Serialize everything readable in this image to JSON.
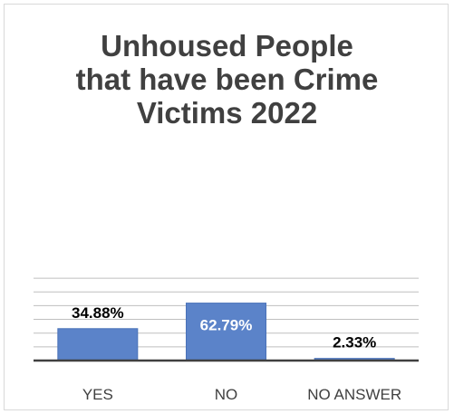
{
  "chart_data": {
    "type": "bar",
    "title": "Unhoused People\nthat have been Crime\nVictims 2022",
    "categories": [
      "YES",
      "NO",
      "NO ANSWER"
    ],
    "values": [
      34.88,
      62.79,
      2.33
    ],
    "data_labels": [
      "34.88%",
      "62.79%",
      "2.33%"
    ],
    "ylim": [
      0,
      90
    ],
    "ytick_step": 15,
    "xlabel": "",
    "ylabel": "",
    "grid": true,
    "legend": "none",
    "colors": {
      "bar": "#5b83c9",
      "bar_edge": "#4a72b8",
      "grid": "#bfbfbf",
      "axis": "#404040",
      "label_inside": "#ffffff",
      "label_outside": "#000000",
      "tick_label": "#404040"
    }
  }
}
